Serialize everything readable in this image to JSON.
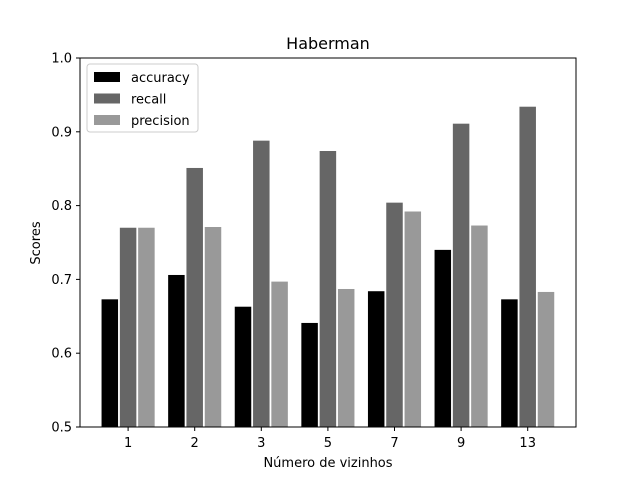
{
  "chart_data": {
    "type": "bar",
    "title": "Haberman",
    "xlabel": "Número de vizinhos",
    "ylabel": "Scores",
    "categories": [
      "1",
      "2",
      "3",
      "5",
      "7",
      "9",
      "13"
    ],
    "ylim": [
      0.5,
      1.0
    ],
    "yticks": [
      "0.5",
      "0.6",
      "0.7",
      "0.8",
      "0.9",
      "1.0"
    ],
    "legend_position": "top-left",
    "grid": false,
    "series": [
      {
        "name": "accuracy",
        "color": "#000000",
        "values": [
          0.673,
          0.706,
          0.663,
          0.641,
          0.684,
          0.74,
          0.673
        ]
      },
      {
        "name": "recall",
        "color": "#666666",
        "values": [
          0.77,
          0.851,
          0.888,
          0.874,
          0.804,
          0.911,
          0.934
        ]
      },
      {
        "name": "precision",
        "color": "#999999",
        "values": [
          0.77,
          0.771,
          0.697,
          0.687,
          0.792,
          0.773,
          0.683
        ]
      }
    ]
  }
}
